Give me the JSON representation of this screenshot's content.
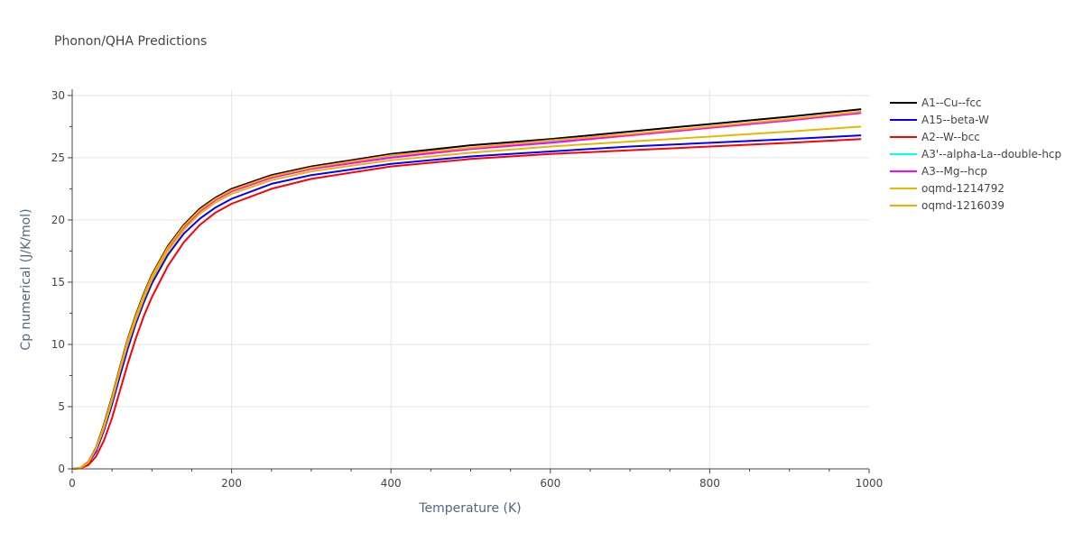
{
  "chart_data": {
    "type": "line",
    "title": "Phonon/QHA Predictions",
    "xlabel": "Temperature (K)",
    "ylabel": "Cp numerical (J/K/mol)",
    "xlim": [
      0,
      1000
    ],
    "ylim": [
      0,
      30.5
    ],
    "xticks": [
      0,
      200,
      400,
      600,
      800,
      1000
    ],
    "yticks": [
      0,
      5,
      10,
      15,
      20,
      25,
      30
    ],
    "grid": true,
    "legend_position": "right",
    "x": [
      0,
      10,
      20,
      30,
      40,
      50,
      60,
      70,
      80,
      90,
      100,
      120,
      140,
      160,
      180,
      200,
      250,
      300,
      400,
      500,
      600,
      700,
      800,
      900,
      990
    ],
    "series": [
      {
        "name": "A1--Cu--fcc",
        "color": "#000000",
        "values": [
          0,
          0.08,
          0.55,
          1.7,
          3.6,
          5.8,
          8.2,
          10.5,
          12.4,
          14.1,
          15.6,
          17.9,
          19.6,
          20.9,
          21.8,
          22.5,
          23.6,
          24.3,
          25.3,
          26.0,
          26.5,
          27.1,
          27.7,
          28.3,
          28.9
        ]
      },
      {
        "name": "A15--beta-W",
        "color": "#0000ff",
        "values": [
          0,
          0.06,
          0.45,
          1.4,
          3.1,
          5.2,
          7.5,
          9.7,
          11.7,
          13.4,
          14.9,
          17.2,
          18.9,
          20.1,
          21.0,
          21.7,
          22.9,
          23.6,
          24.5,
          25.1,
          25.5,
          25.9,
          26.2,
          26.5,
          26.8
        ]
      },
      {
        "name": "A2--W--bcc",
        "color": "#ff0000",
        "values": [
          0,
          0.04,
          0.3,
          1.0,
          2.3,
          4.1,
          6.3,
          8.5,
          10.5,
          12.3,
          13.8,
          16.3,
          18.2,
          19.6,
          20.6,
          21.3,
          22.5,
          23.3,
          24.3,
          24.9,
          25.3,
          25.6,
          25.9,
          26.2,
          26.5
        ]
      },
      {
        "name": "A3'--alpha-La--double-hcp",
        "color": "#00ffff",
        "values": [
          0,
          0.07,
          0.5,
          1.6,
          3.4,
          5.6,
          8.0,
          10.3,
          12.2,
          13.9,
          15.4,
          17.7,
          19.4,
          20.7,
          21.6,
          22.3,
          23.4,
          24.1,
          25.1,
          25.7,
          26.3,
          26.8,
          27.4,
          28.0,
          28.6
        ]
      },
      {
        "name": "A3--Mg--hcp",
        "color": "#ff00ff",
        "values": [
          0,
          0.07,
          0.5,
          1.6,
          3.4,
          5.6,
          8.0,
          10.3,
          12.2,
          13.9,
          15.4,
          17.7,
          19.4,
          20.7,
          21.6,
          22.3,
          23.4,
          24.1,
          25.0,
          25.7,
          26.2,
          26.8,
          27.4,
          28.0,
          28.6
        ]
      },
      {
        "name": "oqmd-1214792",
        "color": "#e6b800",
        "values": [
          0,
          0.07,
          0.5,
          1.6,
          3.3,
          5.5,
          7.9,
          10.1,
          12.0,
          13.7,
          15.2,
          17.5,
          19.2,
          20.5,
          21.4,
          22.1,
          23.2,
          23.9,
          24.8,
          25.4,
          25.9,
          26.3,
          26.7,
          27.1,
          27.5
        ]
      },
      {
        "name": "oqmd-1216039",
        "color": "#ffa500",
        "values": [
          0,
          0.07,
          0.52,
          1.65,
          3.5,
          5.7,
          8.1,
          10.4,
          12.3,
          14.0,
          15.5,
          17.8,
          19.5,
          20.8,
          21.7,
          22.4,
          23.5,
          24.2,
          25.2,
          25.8,
          26.4,
          26.9,
          27.5,
          28.1,
          28.7
        ]
      }
    ]
  }
}
